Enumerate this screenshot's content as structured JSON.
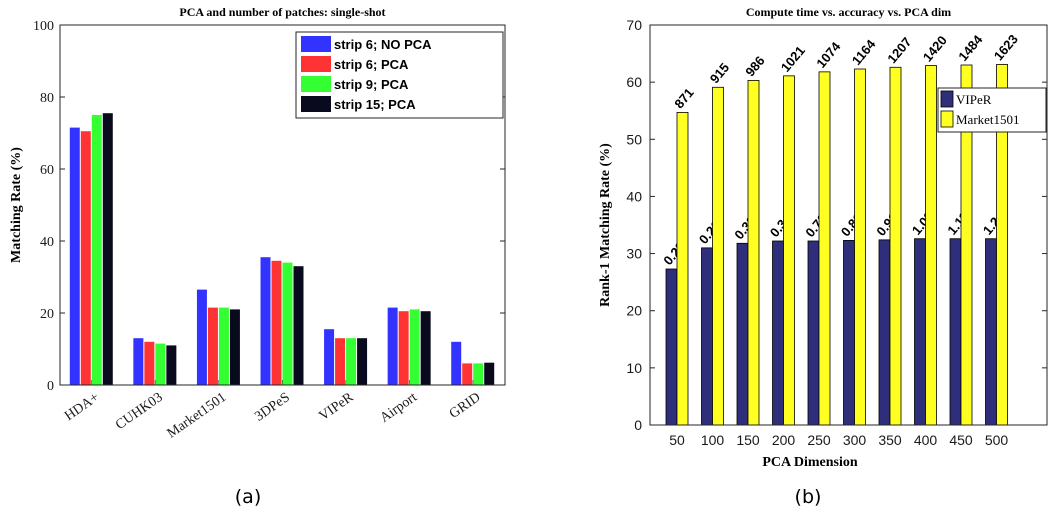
{
  "captions": [
    "(a)",
    "(b)"
  ],
  "chart_data": [
    {
      "type": "bar",
      "title": "PCA and number of patches: single-shot",
      "xlabel": "",
      "ylabel": "Matching Rate (%)",
      "ylim": [
        0,
        100
      ],
      "yticks": [
        0,
        20,
        40,
        60,
        80,
        100
      ],
      "grid": false,
      "legend_position": "top-right",
      "categories": [
        "HDA+",
        "CUHK03",
        "Market1501",
        "3DPeS",
        "VIPeR",
        "Airport",
        "GRID"
      ],
      "series": [
        {
          "name": "strip 6; NO PCA",
          "color": "#3333ff",
          "values": [
            71.5,
            13.0,
            26.5,
            35.5,
            15.5,
            21.5,
            12.0
          ]
        },
        {
          "name": "strip 6; PCA",
          "color": "#ff3333",
          "values": [
            70.5,
            12.0,
            21.5,
            34.5,
            13.0,
            20.5,
            6.0
          ]
        },
        {
          "name": "strip 9; PCA",
          "color": "#33ff33",
          "values": [
            75.0,
            11.5,
            21.5,
            34.0,
            13.0,
            21.0,
            6.0
          ]
        },
        {
          "name": "strip 15; PCA",
          "color": "#0a0a1e",
          "values": [
            75.5,
            11.0,
            21.0,
            33.0,
            13.0,
            20.5,
            6.2
          ]
        }
      ]
    },
    {
      "type": "bar",
      "title": "Compute time vs. accuracy vs. PCA dim",
      "xlabel": "PCA Dimension",
      "ylabel": "Rank-1 Matching Rate (%)",
      "ylim": [
        0,
        70
      ],
      "yticks": [
        0,
        10,
        20,
        30,
        40,
        50,
        60,
        70
      ],
      "grid": false,
      "legend_position": "right",
      "categories": [
        "50",
        "100",
        "150",
        "200",
        "250",
        "300",
        "350",
        "400",
        "450",
        "500"
      ],
      "series": [
        {
          "name": "VIPeR",
          "color": "#2e2e7a",
          "values": [
            27.3,
            31.0,
            31.8,
            32.2,
            32.2,
            32.3,
            32.4,
            32.6,
            32.6,
            32.6
          ],
          "labels": [
            "0.23",
            "0.26",
            "0.30",
            "0.34",
            "0.70",
            "0.81",
            "0.91",
            "1.02",
            "1.11",
            "1.24"
          ]
        },
        {
          "name": "Market1501",
          "color": "#ffff22",
          "values": [
            54.7,
            59.1,
            60.3,
            61.1,
            61.8,
            62.3,
            62.6,
            62.9,
            63.0,
            63.1
          ],
          "labels": [
            "871",
            "915",
            "986",
            "1021",
            "1074",
            "1164",
            "1207",
            "1420",
            "1484",
            "1623"
          ]
        }
      ]
    }
  ]
}
